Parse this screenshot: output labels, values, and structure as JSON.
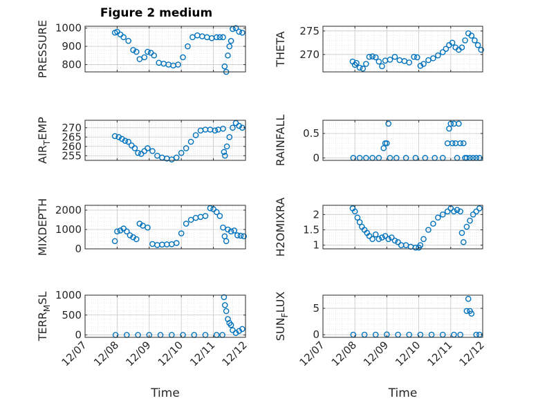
{
  "figure": {
    "title": "Figure 2 medium",
    "marker_color": "#0072BD"
  },
  "chart_data": [
    {
      "type": "scatter",
      "ylabel": "PRESSURE",
      "xlabel": "",
      "ylim": [
        760,
        1010
      ],
      "yticks": [
        800,
        900,
        1000
      ],
      "xlim": [
        0,
        5
      ],
      "xticks": [
        0,
        1,
        2,
        3,
        4,
        5
      ],
      "xticklabels": [
        "12/07",
        "12/08",
        "12/09",
        "12/10",
        "12/11",
        "12/12"
      ],
      "grid": true,
      "x": [
        0.93,
        1.0,
        1.1,
        1.2,
        1.35,
        1.5,
        1.6,
        1.7,
        1.85,
        1.95,
        2.05,
        2.15,
        2.3,
        2.45,
        2.6,
        2.75,
        2.9,
        3.05,
        3.2,
        3.35,
        3.5,
        3.65,
        3.8,
        3.95,
        4.1,
        4.2,
        4.3,
        4.35,
        4.4,
        4.45,
        4.5,
        4.55,
        4.6,
        4.7,
        4.8,
        4.9
      ],
      "y": [
        975,
        980,
        965,
        950,
        930,
        880,
        870,
        830,
        840,
        870,
        865,
        850,
        810,
        805,
        800,
        795,
        800,
        840,
        900,
        950,
        960,
        955,
        950,
        945,
        950,
        950,
        950,
        790,
        760,
        850,
        900,
        930,
        995,
        1000,
        980,
        975
      ]
    },
    {
      "type": "scatter",
      "ylabel": "THETA",
      "xlabel": "",
      "ylim": [
        266.3,
        276
      ],
      "yticks": [
        270,
        275
      ],
      "xlim": [
        0,
        5
      ],
      "xticks": [
        0,
        1,
        2,
        3,
        4,
        5
      ],
      "xticklabels": [
        "12/07",
        "12/08",
        "12/09",
        "12/10",
        "12/11",
        "12/12"
      ],
      "grid": true,
      "x": [
        0.93,
        1.0,
        1.05,
        1.15,
        1.25,
        1.35,
        1.45,
        1.55,
        1.65,
        1.75,
        1.85,
        1.95,
        2.1,
        2.25,
        2.4,
        2.55,
        2.7,
        2.85,
        2.95,
        3.05,
        3.15,
        3.3,
        3.45,
        3.6,
        3.75,
        3.85,
        3.95,
        4.05,
        4.15,
        4.25,
        4.35,
        4.45,
        4.55,
        4.65,
        4.75,
        4.85,
        4.95
      ],
      "y": [
        268.5,
        267.8,
        268.2,
        267.2,
        267.0,
        268.0,
        269.5,
        269.6,
        269.4,
        268.5,
        267.5,
        268.7,
        268.9,
        269.5,
        268.8,
        268.6,
        268.3,
        269.5,
        269.4,
        267.6,
        268.0,
        268.8,
        269.2,
        269.8,
        270.5,
        271.2,
        272.0,
        272.5,
        271.5,
        271.0,
        271.5,
        273.0,
        274.5,
        274.0,
        273.0,
        272.0,
        271.0
      ]
    },
    {
      "type": "scatter",
      "ylabel": "AIR_TEMP",
      "xlabel": "",
      "ylim": [
        252.5,
        274
      ],
      "yticks": [
        255,
        260,
        265,
        270
      ],
      "xlim": [
        0,
        5
      ],
      "xticks": [
        0,
        1,
        2,
        3,
        4,
        5
      ],
      "xticklabels": [
        "12/07",
        "12/08",
        "12/09",
        "12/10",
        "12/11",
        "12/12"
      ],
      "grid": true,
      "x": [
        0.93,
        1.05,
        1.15,
        1.25,
        1.35,
        1.45,
        1.55,
        1.65,
        1.75,
        1.85,
        1.95,
        2.1,
        2.25,
        2.4,
        2.55,
        2.7,
        2.85,
        3.0,
        3.15,
        3.3,
        3.45,
        3.6,
        3.75,
        3.9,
        4.05,
        4.15,
        4.3,
        4.33,
        4.36,
        4.42,
        4.5,
        4.6,
        4.7,
        4.8,
        4.9
      ],
      "y": [
        265.5,
        265.0,
        264.0,
        263.0,
        262.5,
        260.5,
        259.0,
        256.5,
        256.0,
        257.5,
        259.0,
        257.5,
        255.0,
        254.0,
        253.5,
        253.0,
        254.0,
        256.5,
        259.0,
        262.5,
        266.0,
        268.5,
        269.0,
        269.0,
        268.5,
        269.0,
        269.5,
        257.0,
        255.0,
        260.0,
        265.0,
        270.0,
        272.5,
        271.0,
        270.0
      ]
    },
    {
      "type": "scatter",
      "ylabel": "RAINFALL",
      "xlabel": "",
      "ylim": [
        -0.05,
        0.77
      ],
      "yticks": [
        0,
        0.5
      ],
      "xlim": [
        0,
        5
      ],
      "xticks": [
        0,
        1,
        2,
        3,
        4,
        5
      ],
      "xticklabels": [
        "12/07",
        "12/08",
        "12/09",
        "12/10",
        "12/11",
        "12/12"
      ],
      "grid": true,
      "x": [
        0.95,
        1.15,
        1.35,
        1.55,
        1.75,
        1.9,
        1.95,
        2.0,
        2.05,
        2.1,
        2.3,
        2.6,
        2.9,
        3.2,
        3.5,
        3.75,
        3.9,
        3.95,
        4.0,
        4.05,
        4.1,
        4.15,
        4.2,
        4.25,
        4.3,
        4.4,
        4.45,
        4.5,
        4.6,
        4.7,
        4.8,
        4.9
      ],
      "y": [
        0,
        0,
        0,
        0,
        0,
        0.2,
        0.3,
        0.3,
        0.7,
        0,
        0,
        0,
        0,
        0,
        0,
        0,
        0.3,
        0.6,
        0.7,
        0.3,
        0.7,
        0.3,
        0,
        0.7,
        0.3,
        0.3,
        0,
        0,
        0,
        0,
        0,
        0
      ]
    },
    {
      "type": "scatter",
      "ylabel": "MIXDEPTH",
      "xlabel": "",
      "ylim": [
        0,
        2250
      ],
      "yticks": [
        0,
        1000,
        2000
      ],
      "xlim": [
        0,
        5
      ],
      "xticks": [
        0,
        1,
        2,
        3,
        4,
        5
      ],
      "xticklabels": [
        "12/07",
        "12/08",
        "12/09",
        "12/10",
        "12/11",
        "12/12"
      ],
      "grid": true,
      "x": [
        0.93,
        1.0,
        1.1,
        1.2,
        1.3,
        1.4,
        1.5,
        1.6,
        1.7,
        1.8,
        1.95,
        2.1,
        2.25,
        2.4,
        2.55,
        2.7,
        2.85,
        3.0,
        3.15,
        3.3,
        3.45,
        3.6,
        3.75,
        3.9,
        4.0,
        4.1,
        4.2,
        4.3,
        4.35,
        4.4,
        4.45,
        4.55,
        4.65,
        4.75,
        4.85,
        4.95
      ],
      "y": [
        400,
        900,
        950,
        1050,
        900,
        700,
        600,
        500,
        1300,
        1200,
        1100,
        250,
        200,
        220,
        230,
        240,
        300,
        800,
        1300,
        1500,
        1600,
        1650,
        1700,
        2100,
        2050,
        1900,
        1700,
        1100,
        650,
        400,
        1000,
        900,
        950,
        700,
        680,
        650
      ]
    },
    {
      "type": "scatter",
      "ylabel": "H2OMIXRA",
      "xlabel": "",
      "ylim": [
        0.88,
        2.3
      ],
      "yticks": [
        1,
        1.5,
        2
      ],
      "xlim": [
        0,
        5
      ],
      "xticks": [
        0,
        1,
        2,
        3,
        4,
        5
      ],
      "xticklabels": [
        "12/07",
        "12/08",
        "12/09",
        "12/10",
        "12/11",
        "12/12"
      ],
      "grid": true,
      "x": [
        0.93,
        1.0,
        1.08,
        1.15,
        1.22,
        1.3,
        1.38,
        1.45,
        1.55,
        1.65,
        1.75,
        1.85,
        1.95,
        2.05,
        2.15,
        2.25,
        2.35,
        2.45,
        2.6,
        2.75,
        2.9,
        3.0,
        3.05,
        3.15,
        3.3,
        3.45,
        3.6,
        3.75,
        3.9,
        4.0,
        4.1,
        4.2,
        4.3,
        4.35,
        4.4,
        4.5,
        4.6,
        4.7,
        4.8,
        4.9
      ],
      "y": [
        2.2,
        2.1,
        1.9,
        1.75,
        1.6,
        1.5,
        1.4,
        1.3,
        1.2,
        1.35,
        1.2,
        1.25,
        1.3,
        1.2,
        1.25,
        1.15,
        1.1,
        1.0,
        1.0,
        0.95,
        0.92,
        0.92,
        1.0,
        1.2,
        1.5,
        1.7,
        1.9,
        2.0,
        2.1,
        2.2,
        2.1,
        2.15,
        2.1,
        1.4,
        1.1,
        1.6,
        1.8,
        2.0,
        2.1,
        2.2
      ]
    },
    {
      "type": "scatter",
      "ylabel": "TERR_MSL",
      "xlabel": "Time",
      "ylim": [
        -60,
        1000
      ],
      "yticks": [
        0,
        500,
        1000
      ],
      "xlim": [
        0,
        5
      ],
      "xticks": [
        0,
        1,
        2,
        3,
        4,
        5
      ],
      "xticklabels": [
        "12/07",
        "12/08",
        "12/09",
        "12/10",
        "12/11",
        "12/12"
      ],
      "grid": true,
      "x": [
        0.95,
        1.3,
        1.65,
        2.0,
        2.35,
        2.7,
        3.05,
        3.4,
        3.75,
        4.1,
        4.28,
        4.33,
        4.36,
        4.4,
        4.45,
        4.5,
        4.55,
        4.6,
        4.7,
        4.8,
        4.9
      ],
      "y": [
        0,
        0,
        0,
        0,
        0,
        0,
        0,
        0,
        0,
        0,
        0,
        950,
        750,
        600,
        400,
        300,
        250,
        120,
        50,
        100,
        150
      ]
    },
    {
      "type": "scatter",
      "ylabel": "SUN_FLUX",
      "xlabel": "Time",
      "ylim": [
        -0.5,
        7.5
      ],
      "yticks": [
        0,
        5
      ],
      "xlim": [
        0,
        5
      ],
      "xticks": [
        0,
        1,
        2,
        3,
        4,
        5
      ],
      "xticklabels": [
        "12/07",
        "12/08",
        "12/09",
        "12/10",
        "12/11",
        "12/12"
      ],
      "grid": true,
      "x": [
        0.95,
        1.3,
        1.65,
        2.0,
        2.35,
        2.7,
        3.05,
        3.4,
        3.75,
        4.1,
        4.3,
        4.5,
        4.55,
        4.6,
        4.65,
        4.8,
        4.9
      ],
      "y": [
        0,
        0,
        0,
        0.05,
        0,
        0,
        0,
        0,
        0,
        0,
        0,
        4.5,
        6.8,
        4.5,
        4.0,
        0,
        0
      ]
    }
  ]
}
